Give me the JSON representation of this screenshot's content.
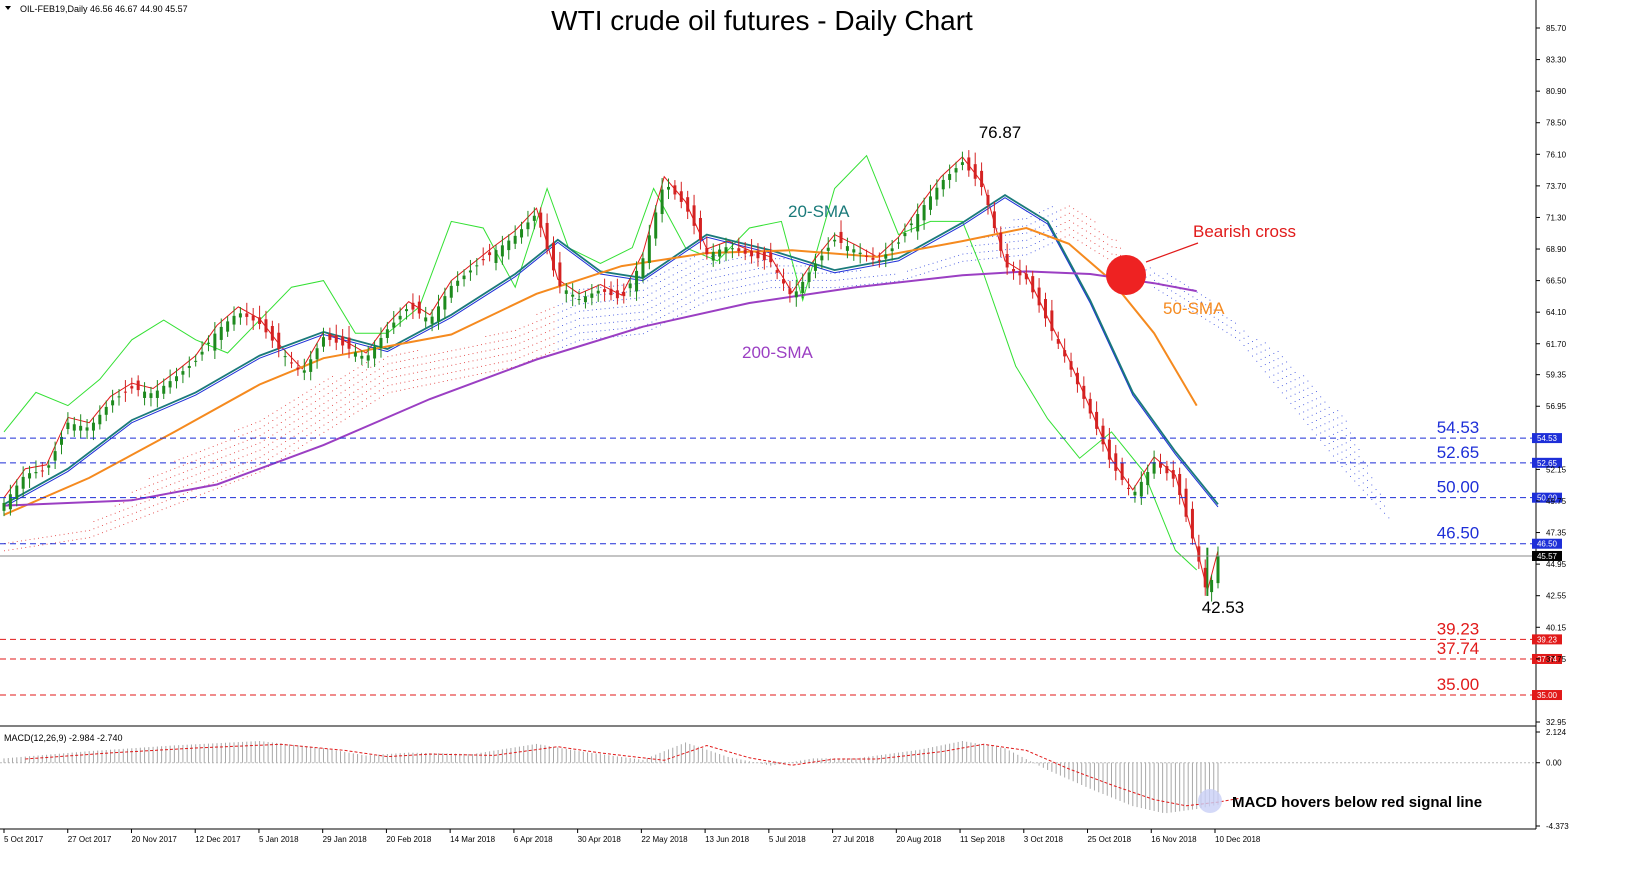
{
  "header": {
    "symbol_info": "OIL-FEB19,Daily  46.56 46.67 44.90 45.57",
    "title": "WTI crude oil futures - Daily Chart"
  },
  "chart_data": {
    "type": "candlestick",
    "y_axis_ticks": [
      "85.70",
      "83.30",
      "80.90",
      "78.50",
      "76.10",
      "73.70",
      "71.30",
      "68.90",
      "66.50",
      "64.10",
      "61.70",
      "59.35",
      "56.95",
      "52.15",
      "49.75",
      "47.35",
      "44.95",
      "42.55",
      "40.15",
      "37.75",
      "32.95"
    ],
    "ylim": [
      32.95,
      87.0
    ],
    "x_axis_ticks": [
      "5 Oct 2017",
      "27 Oct 2017",
      "20 Nov 2017",
      "12 Dec 2017",
      "5 Jan 2018",
      "29 Jan 2018",
      "20 Feb 2018",
      "14 Mar 2018",
      "6 Apr 2018",
      "30 Apr 2018",
      "22 May 2018",
      "13 Jun 2018",
      "5 Jul 2018",
      "27 Jul 2018",
      "20 Aug 2018",
      "11 Sep 2018",
      "3 Oct 2018",
      "25 Oct 2018",
      "16 Nov 2018",
      "10 Dec 2018"
    ],
    "close_path": [
      [
        0,
        49.6
      ],
      [
        10,
        51.8
      ],
      [
        20,
        52.1
      ],
      [
        30,
        55.7
      ],
      [
        40,
        55.3
      ],
      [
        50,
        57.3
      ],
      [
        60,
        58.3
      ],
      [
        70,
        57.9
      ],
      [
        80,
        59.1
      ],
      [
        90,
        60.4
      ],
      [
        100,
        62.7
      ],
      [
        110,
        64.1
      ],
      [
        120,
        63.2
      ],
      [
        130,
        61.1
      ],
      [
        140,
        59.4
      ],
      [
        150,
        62.2
      ],
      [
        160,
        61.5
      ],
      [
        170,
        60.6
      ],
      [
        180,
        62.8
      ],
      [
        190,
        64.5
      ],
      [
        200,
        63.5
      ],
      [
        210,
        66.1
      ],
      [
        220,
        67.4
      ],
      [
        230,
        68.7
      ],
      [
        240,
        69.9
      ],
      [
        250,
        71.6
      ],
      [
        260,
        66.2
      ],
      [
        270,
        65.1
      ],
      [
        280,
        65.8
      ],
      [
        290,
        65.0
      ],
      [
        300,
        68.2
      ],
      [
        310,
        74.0
      ],
      [
        320,
        72.1
      ],
      [
        330,
        68.5
      ],
      [
        340,
        69.1
      ],
      [
        350,
        68.4
      ],
      [
        360,
        67.9
      ],
      [
        370,
        65.2
      ],
      [
        380,
        67.6
      ],
      [
        390,
        69.6
      ],
      [
        400,
        68.8
      ],
      [
        410,
        67.9
      ],
      [
        420,
        69.4
      ],
      [
        430,
        71.8
      ],
      [
        440,
        74.0
      ],
      [
        450,
        75.5
      ],
      [
        460,
        73.4
      ],
      [
        470,
        67.6
      ],
      [
        480,
        66.6
      ],
      [
        490,
        63.3
      ],
      [
        500,
        60.1
      ],
      [
        510,
        56.4
      ],
      [
        520,
        52.5
      ],
      [
        530,
        50.2
      ],
      [
        540,
        52.7
      ],
      [
        550,
        51.3
      ],
      [
        560,
        45.8
      ],
      [
        565,
        42.53
      ],
      [
        570,
        45.57
      ]
    ],
    "high_label": "76.87",
    "low_label": "42.53",
    "series": [
      {
        "name": "20-SMA",
        "color": "#1a7a7a",
        "points": [
          [
            0,
            49.5
          ],
          [
            30,
            52.2
          ],
          [
            60,
            55.9
          ],
          [
            90,
            58.0
          ],
          [
            120,
            60.8
          ],
          [
            150,
            62.6
          ],
          [
            180,
            61.3
          ],
          [
            210,
            63.9
          ],
          [
            240,
            67.0
          ],
          [
            260,
            69.6
          ],
          [
            280,
            67.2
          ],
          [
            300,
            66.7
          ],
          [
            330,
            70.0
          ],
          [
            360,
            68.8
          ],
          [
            390,
            67.3
          ],
          [
            420,
            68.2
          ],
          [
            450,
            70.9
          ],
          [
            470,
            73.0
          ],
          [
            490,
            71.0
          ],
          [
            510,
            65.0
          ],
          [
            530,
            58.0
          ],
          [
            550,
            53.5
          ],
          [
            570,
            49.5
          ]
        ]
      },
      {
        "name": "50-SMA",
        "color": "#f58a1f",
        "points": [
          [
            0,
            48.7
          ],
          [
            40,
            51.5
          ],
          [
            80,
            55.0
          ],
          [
            120,
            58.6
          ],
          [
            150,
            60.6
          ],
          [
            180,
            61.5
          ],
          [
            210,
            62.4
          ],
          [
            250,
            65.5
          ],
          [
            290,
            67.6
          ],
          [
            330,
            68.6
          ],
          [
            370,
            68.8
          ],
          [
            410,
            68.3
          ],
          [
            450,
            69.5
          ],
          [
            480,
            70.5
          ],
          [
            500,
            69.3
          ],
          [
            520,
            66.5
          ],
          [
            540,
            62.5
          ],
          [
            560,
            57.0
          ]
        ]
      },
      {
        "name": "200-SMA",
        "color": "#9b3fc3",
        "points": [
          [
            0,
            49.4
          ],
          [
            60,
            49.8
          ],
          [
            100,
            51.0
          ],
          [
            150,
            54.0
          ],
          [
            200,
            57.5
          ],
          [
            250,
            60.5
          ],
          [
            300,
            63.0
          ],
          [
            350,
            64.8
          ],
          [
            400,
            66.0
          ],
          [
            450,
            66.9
          ],
          [
            480,
            67.2
          ],
          [
            510,
            67.0
          ],
          [
            540,
            66.3
          ],
          [
            560,
            65.7
          ]
        ]
      }
    ],
    "fib_levels": [
      {
        "label": "54.53",
        "value": 54.53,
        "color": "#1e2fd8",
        "side": "blue"
      },
      {
        "label": "52.65",
        "value": 52.65,
        "color": "#1e2fd8",
        "side": "blue"
      },
      {
        "label": "50.00",
        "value": 50.0,
        "color": "#1e2fd8",
        "side": "blue"
      },
      {
        "label": "46.50",
        "value": 46.5,
        "color": "#1e2fd8",
        "side": "blue"
      },
      {
        "label": "39.23",
        "value": 39.23,
        "color": "#e11a1a",
        "side": "red"
      },
      {
        "label": "37.74",
        "value": 37.74,
        "color": "#e11a1a",
        "side": "red"
      },
      {
        "label": "35.00",
        "value": 35.0,
        "color": "#e11a1a",
        "side": "red"
      }
    ],
    "current_price": {
      "label": "45.57",
      "value": 45.57
    },
    "annotations": [
      {
        "text": "20-SMA",
        "color": "#1a7a7a"
      },
      {
        "text": "50-SMA",
        "color": "#f58a1f"
      },
      {
        "text": "200-SMA",
        "color": "#9b3fc3"
      },
      {
        "text": "Bearish cross",
        "color": "#e11a1a"
      }
    ],
    "macd": {
      "label": "MACD(12,26,9) -2.984 -2.740",
      "y_ticks": [
        "2.124",
        "0.00",
        "-4.373"
      ],
      "ylim": [
        -4.373,
        2.124
      ],
      "annotation": "MACD hovers below red signal line"
    }
  }
}
